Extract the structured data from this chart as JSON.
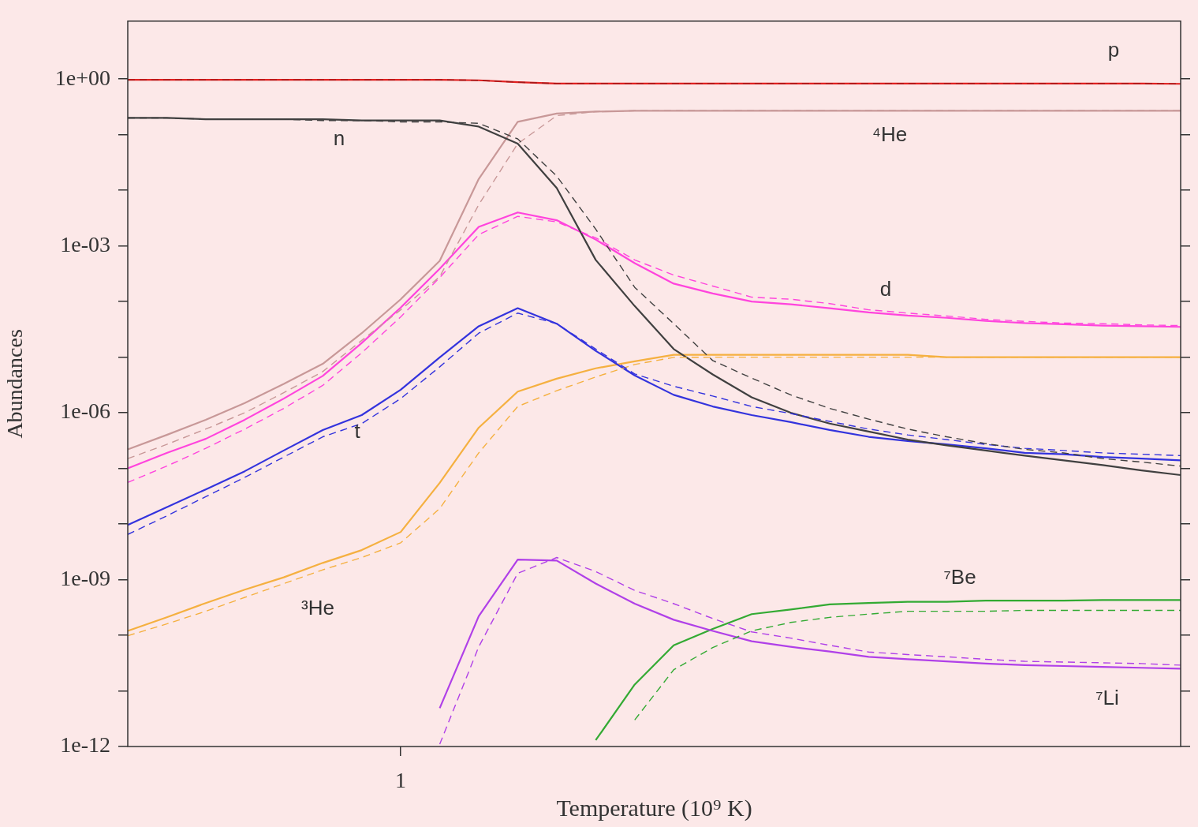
{
  "chart_data": {
    "type": "line",
    "xlabel": "Temperature (10⁹ K)",
    "ylabel": "Abundances",
    "log": "y",
    "grid": false,
    "legend": false,
    "marker": "none",
    "categories": [
      null,
      null,
      null,
      null,
      null,
      null,
      null,
      "1",
      null,
      null,
      null,
      null,
      null,
      null,
      null,
      null,
      null,
      null,
      null,
      null,
      null,
      null,
      null,
      null,
      null,
      null,
      null,
      null
    ],
    "ylim": [
      1e-12,
      11
    ],
    "yticks": [
      {
        "value": 1,
        "label": "1e+00"
      },
      {
        "value": 0.1,
        "label": null
      },
      {
        "value": 0.01,
        "label": null
      },
      {
        "value": 0.001,
        "label": "1e-03"
      },
      {
        "value": 0.0001,
        "label": null
      },
      {
        "value": 1e-05,
        "label": null
      },
      {
        "value": 1e-06,
        "label": "1e-06"
      },
      {
        "value": 1e-07,
        "label": null
      },
      {
        "value": 1e-08,
        "label": null
      },
      {
        "value": 1e-09,
        "label": "1e-09"
      },
      {
        "value": 1e-10,
        "label": null
      },
      {
        "value": 1e-11,
        "label": null
      },
      {
        "value": 1e-12,
        "label": "1e-12"
      }
    ],
    "series": [
      {
        "color": "#e02020",
        "line_style": "solid",
        "values": [
          0.97,
          0.97,
          0.97,
          0.97,
          0.97,
          0.97,
          0.97,
          0.97,
          0.97,
          0.95,
          0.88,
          0.83,
          0.83,
          0.83,
          0.83,
          0.83,
          0.83,
          0.83,
          0.83,
          0.83,
          0.83,
          0.83,
          0.83,
          0.83,
          0.83,
          0.83,
          0.83,
          0.82
        ]
      },
      {
        "color": "#a01818",
        "line_style": "dashed",
        "values": [
          0.97,
          0.97,
          0.97,
          0.97,
          0.97,
          0.97,
          0.97,
          0.97,
          0.97,
          0.95,
          0.88,
          0.83,
          0.83,
          0.83,
          0.83,
          0.83,
          0.83,
          0.83,
          0.83,
          0.83,
          0.83,
          0.83,
          0.83,
          0.83,
          0.83,
          0.83,
          0.83,
          0.82
        ]
      },
      {
        "color": "#404040",
        "line_style": "solid",
        "values": [
          0.2,
          0.2,
          0.19,
          0.19,
          0.19,
          0.19,
          0.18,
          0.18,
          0.18,
          0.14,
          0.069,
          0.011,
          0.00056,
          8.3e-05,
          1.4e-05,
          4.9e-06,
          1.9e-06,
          1e-06,
          6.4e-07,
          4.6e-07,
          3.3e-07,
          2.6e-07,
          2.1e-07,
          1.7e-07,
          1.4e-07,
          1.15e-07,
          9.2e-08,
          7.6e-08
        ]
      },
      {
        "color": "#404040",
        "line_style": "dashed",
        "values": [
          0.2,
          0.2,
          0.19,
          0.19,
          0.19,
          0.18,
          0.18,
          0.17,
          0.17,
          0.16,
          0.084,
          0.018,
          0.002,
          0.00018,
          4e-05,
          8.7e-06,
          4.2e-06,
          2.1e-06,
          1.2e-06,
          7.7e-07,
          5.1e-07,
          3.7e-07,
          2.8e-07,
          2.2e-07,
          1.9e-07,
          1.5e-07,
          1.3e-07,
          1.1e-07
        ]
      },
      {
        "color": "#c89898",
        "line_style": "solid",
        "values": [
          2.2e-07,
          4e-07,
          7.5e-07,
          1.5e-06,
          3.3e-06,
          7.6e-06,
          2.7e-05,
          0.00011,
          0.00054,
          0.016,
          0.17,
          0.24,
          0.26,
          0.27,
          0.27,
          0.27,
          0.27,
          0.27,
          0.27,
          0.27,
          0.27,
          0.27,
          0.27,
          0.27,
          0.27,
          0.27,
          0.27,
          0.27
        ]
      },
      {
        "color": "#c89898",
        "line_style": "dashed",
        "values": [
          1.5e-07,
          2.7e-07,
          5.1e-07,
          1e-06,
          2.3e-06,
          5.5e-06,
          2e-05,
          7.1e-05,
          0.00028,
          0.0055,
          0.069,
          0.22,
          0.26,
          0.27,
          0.27,
          0.27,
          0.27,
          0.27,
          0.27,
          0.27,
          0.27,
          0.27,
          0.27,
          0.27,
          0.27,
          0.27,
          0.27,
          0.27
        ]
      },
      {
        "color": "#ff44dd",
        "line_style": "solid",
        "values": [
          1e-07,
          1.9e-07,
          3.4e-07,
          7.5e-07,
          1.8e-06,
          4.6e-06,
          1.8e-05,
          7.8e-05,
          0.00039,
          0.0022,
          0.004,
          0.0029,
          0.0013,
          0.00049,
          0.00021,
          0.00014,
          0.0001,
          8.9e-05,
          7.6e-05,
          6.4e-05,
          5.6e-05,
          5.1e-05,
          4.5e-05,
          4.1e-05,
          3.9e-05,
          3.7e-05,
          3.6e-05,
          3.5e-05
        ]
      },
      {
        "color": "#ff44dd",
        "line_style": "dashed",
        "values": [
          5.6e-08,
          1.1e-07,
          2.3e-07,
          5.1e-07,
          1.2e-06,
          3.1e-06,
          1.2e-05,
          5.3e-05,
          0.00027,
          0.0016,
          0.0034,
          0.0027,
          0.0014,
          0.00056,
          0.0003,
          0.00019,
          0.00012,
          0.00011,
          9.2e-05,
          7.1e-05,
          6.2e-05,
          5.5e-05,
          4.8e-05,
          4.4e-05,
          4.1e-05,
          4e-05,
          3.8e-05,
          3.7e-05
        ]
      },
      {
        "color": "#3333dd",
        "line_style": "solid",
        "values": [
          9.6e-09,
          2e-08,
          4.2e-08,
          8.9e-08,
          2.1e-07,
          4.9e-07,
          9.1e-07,
          2.6e-06,
          9.9e-06,
          3.6e-05,
          7.6e-05,
          4e-05,
          1.3e-05,
          4.7e-06,
          2.1e-06,
          1.3e-06,
          9.1e-07,
          6.8e-07,
          4.9e-07,
          3.7e-07,
          3.1e-07,
          2.7e-07,
          2.3e-07,
          1.9e-07,
          1.8e-07,
          1.6e-07,
          1.5e-07,
          1.4e-07
        ]
      },
      {
        "color": "#3333dd",
        "line_style": "dashed",
        "values": [
          6.5e-09,
          1.4e-08,
          3.1e-08,
          6.9e-08,
          1.6e-07,
          3.7e-07,
          6.4e-07,
          1.8e-06,
          6.7e-06,
          2.7e-05,
          6.2e-05,
          4e-05,
          1.4e-05,
          5e-06,
          3e-06,
          2e-06,
          1.3e-06,
          9.7e-07,
          7e-07,
          5.1e-07,
          4e-07,
          3.3e-07,
          2.7e-07,
          2.3e-07,
          2.1e-07,
          1.9e-07,
          1.8e-07,
          1.7e-07
        ]
      },
      {
        "color": "#f5b040",
        "line_style": "solid",
        "values": [
          1.2e-10,
          2.1e-10,
          3.8e-10,
          6.6e-10,
          1.1e-09,
          2e-09,
          3.4e-09,
          7.2e-09,
          5.5e-08,
          5.4e-07,
          2.4e-06,
          4.1e-06,
          6.3e-06,
          8.4e-06,
          1.1e-05,
          1.1e-05,
          1.1e-05,
          1.1e-05,
          1.1e-05,
          1.1e-05,
          1.1e-05,
          1e-05,
          1e-05,
          1e-05,
          1e-05,
          1e-05,
          1e-05,
          1e-05
        ]
      },
      {
        "color": "#f5b040",
        "line_style": "dashed",
        "values": [
          9.8e-11,
          1.6e-10,
          2.7e-10,
          4.8e-10,
          8.5e-10,
          1.5e-09,
          2.5e-09,
          4.6e-09,
          1.9e-08,
          1.9e-07,
          1.3e-06,
          2.5e-06,
          4.4e-06,
          7.4e-06,
          9.9e-06,
          1e-05,
          1e-05,
          1e-05,
          1e-05,
          1e-05,
          1e-05,
          1e-05,
          1e-05,
          1e-05,
          1e-05,
          1e-05,
          1e-05,
          1e-05
        ]
      },
      {
        "color": "#b040e8",
        "line_style": "solid",
        "values": [
          null,
          null,
          null,
          null,
          null,
          null,
          null,
          null,
          4.9e-12,
          2.2e-10,
          2.3e-09,
          2.2e-09,
          8.5e-10,
          3.7e-10,
          1.9e-10,
          1.2e-10,
          7.8e-11,
          6.2e-11,
          5.1e-11,
          4.1e-11,
          3.7e-11,
          3.4e-11,
          3.1e-11,
          2.9e-11,
          2.8e-11,
          2.7e-11,
          2.6e-11,
          2.5e-11
        ]
      },
      {
        "color": "#b040e8",
        "line_style": "dashed",
        "values": [
          null,
          null,
          null,
          null,
          null,
          null,
          null,
          null,
          1.1e-12,
          6.2e-11,
          1.3e-09,
          2.5e-09,
          1.4e-09,
          6.4e-10,
          3.7e-10,
          2e-10,
          1.15e-10,
          8.9e-11,
          6.6e-11,
          5e-11,
          4.5e-11,
          4.1e-11,
          3.7e-11,
          3.4e-11,
          3.3e-11,
          3.2e-11,
          3.1e-11,
          2.9e-11
        ]
      },
      {
        "color": "#33aa33",
        "line_style": "solid",
        "values": [
          null,
          null,
          null,
          null,
          null,
          null,
          null,
          null,
          null,
          null,
          null,
          null,
          1.3e-12,
          1.3e-11,
          6.6e-11,
          1.3e-10,
          2.4e-10,
          2.9e-10,
          3.6e-10,
          3.8e-10,
          4e-10,
          4e-10,
          4.2e-10,
          4.2e-10,
          4.2e-10,
          4.3e-10,
          4.3e-10,
          4.3e-10
        ]
      },
      {
        "color": "#33aa33",
        "line_style": "dashed",
        "values": [
          null,
          null,
          null,
          null,
          null,
          null,
          null,
          null,
          null,
          null,
          null,
          null,
          null,
          3e-12,
          2.4e-11,
          6e-11,
          1.2e-10,
          1.7e-10,
          2.1e-10,
          2.4e-10,
          2.7e-10,
          2.7e-10,
          2.7e-10,
          2.8e-10,
          2.8e-10,
          2.8e-10,
          2.8e-10,
          2.8e-10
        ]
      }
    ],
    "annotations": [
      "p",
      "n",
      "⁴He",
      "d",
      "t",
      "³He",
      "⁷Be",
      "⁷Li"
    ]
  }
}
